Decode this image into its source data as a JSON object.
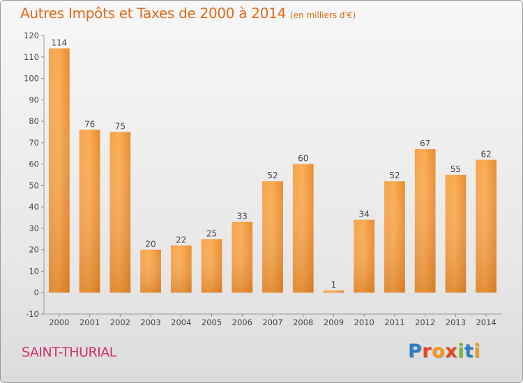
{
  "title": "Autres Impôts et Taxes de 2000 à 2014",
  "unit": "(en milliers d'€)",
  "commune": "SAINT-THURIAL",
  "logo": [
    "P",
    "r",
    "o",
    "x",
    "i",
    "t",
    "i"
  ],
  "colors": {
    "bar_light": "#f9a94c",
    "bar_dark": "#e07a1e",
    "title": "#e06a1a",
    "commune": "#d0306a"
  },
  "chart_data": {
    "type": "bar",
    "categories": [
      "2000",
      "2001",
      "2002",
      "2003",
      "2004",
      "2005",
      "2006",
      "2007",
      "2008",
      "2009",
      "2010",
      "2011",
      "2012",
      "2013",
      "2014"
    ],
    "values": [
      114,
      76,
      75,
      20,
      22,
      25,
      33,
      52,
      60,
      1,
      34,
      52,
      67,
      55,
      62
    ],
    "ylim": [
      -10,
      120
    ],
    "yticks": [
      -10,
      0,
      10,
      20,
      30,
      40,
      50,
      60,
      70,
      80,
      90,
      100,
      110,
      120
    ],
    "grid": false
  }
}
